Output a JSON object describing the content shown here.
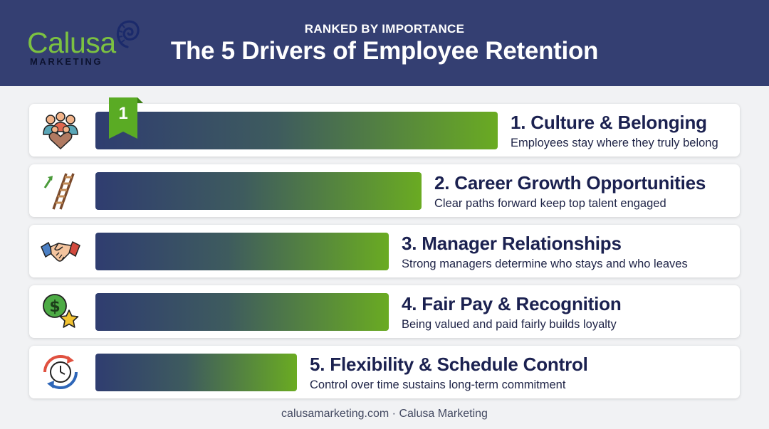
{
  "header": {
    "logo_text": "Calusa",
    "logo_subtext": "MARKETING",
    "kicker": "RANKED BY IMPORTANCE",
    "title": "The 5 Drivers of Employee Retention"
  },
  "rank_badge": "1",
  "footer": "calusamarketing.com · Calusa Marketing",
  "colors": {
    "header_bg": "#343f72",
    "bar_start": "#2f3d70",
    "bar_end": "#6aab22",
    "logo_green": "#7cc241",
    "title_text": "#1b2150"
  },
  "chart_data": {
    "type": "bar",
    "orientation": "horizontal",
    "scale": "rank (bar length decreases with rank, no numeric axis)",
    "items": [
      {
        "rank": 1,
        "title": "1. Culture & Belonging",
        "subtitle": "Employees stay where they truly belong",
        "icon": "team-heart-icon",
        "relative_value": 1.0
      },
      {
        "rank": 2,
        "title": "2. Career Growth Opportunities",
        "subtitle": "Clear paths forward keep top talent engaged",
        "icon": "ladder-arrow-icon",
        "relative_value": 0.81
      },
      {
        "rank": 3,
        "title": "3. Manager Relationships",
        "subtitle": "Strong managers determine who stays and who leaves",
        "icon": "handshake-icon",
        "relative_value": 0.73
      },
      {
        "rank": 4,
        "title": "4. Fair Pay & Recognition",
        "subtitle": "Being valued and paid fairly builds loyalty",
        "icon": "dollar-star-icon",
        "relative_value": 0.73
      },
      {
        "rank": 5,
        "title": "5. Flexibility & Schedule Control",
        "subtitle": "Control over time sustains long-term commitment",
        "icon": "clock-cycle-icon",
        "relative_value": 0.5
      }
    ]
  }
}
